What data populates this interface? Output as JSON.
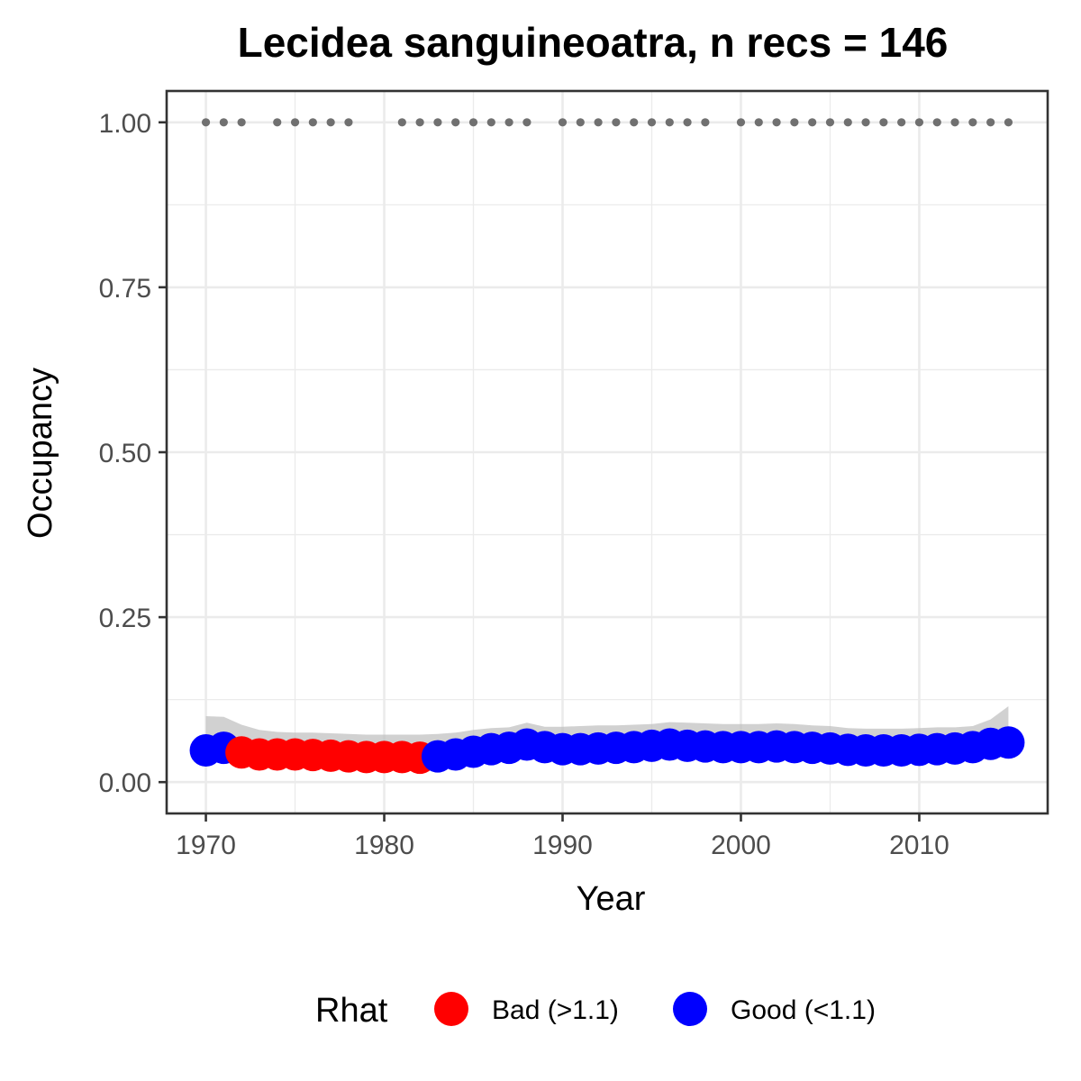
{
  "chart_data": {
    "type": "scatter",
    "title": "Lecidea sanguineoatra, n recs = 146",
    "xlabel": "Year",
    "ylabel": "Occupancy",
    "xlim": [
      1967.8,
      2017.2
    ],
    "ylim": [
      -0.0475,
      1.0475
    ],
    "x_ticks": [
      1970,
      1980,
      1990,
      2000,
      2010
    ],
    "x_tick_labels": [
      "1970",
      "1980",
      "1990",
      "2000",
      "2010"
    ],
    "y_ticks": [
      0,
      0.25,
      0.5,
      0.75,
      1
    ],
    "y_tick_labels": [
      "0.00",
      "0.25",
      "0.50",
      "0.75",
      "1.00"
    ],
    "grid": true,
    "legend": {
      "title": "Rhat",
      "position": "bottom",
      "entries": [
        {
          "label": "Bad (>1.1)",
          "color": "#ff0000"
        },
        {
          "label": "Good (<1.1)",
          "color": "#0000ff"
        }
      ]
    },
    "series": [
      {
        "kind": "occupancy",
        "x": [
          1970,
          1971,
          1972,
          1973,
          1974,
          1975,
          1976,
          1977,
          1978,
          1979,
          1980,
          1981,
          1982,
          1983,
          1984,
          1985,
          1986,
          1987,
          1988,
          1989,
          1990,
          1991,
          1992,
          1993,
          1994,
          1995,
          1996,
          1997,
          1998,
          1999,
          2000,
          2001,
          2002,
          2003,
          2004,
          2005,
          2006,
          2007,
          2008,
          2009,
          2010,
          2011,
          2012,
          2013,
          2014,
          2015
        ],
        "y": [
          0.048,
          0.052,
          0.045,
          0.042,
          0.042,
          0.042,
          0.041,
          0.04,
          0.039,
          0.038,
          0.038,
          0.038,
          0.037,
          0.039,
          0.042,
          0.046,
          0.05,
          0.052,
          0.057,
          0.053,
          0.05,
          0.05,
          0.051,
          0.052,
          0.053,
          0.055,
          0.057,
          0.055,
          0.054,
          0.053,
          0.053,
          0.053,
          0.054,
          0.053,
          0.052,
          0.051,
          0.049,
          0.048,
          0.048,
          0.048,
          0.049,
          0.05,
          0.051,
          0.053,
          0.058,
          0.06
        ],
        "rhat": [
          "Good",
          "Good",
          "Bad",
          "Bad",
          "Bad",
          "Bad",
          "Bad",
          "Bad",
          "Bad",
          "Bad",
          "Bad",
          "Bad",
          "Bad",
          "Good",
          "Good",
          "Good",
          "Good",
          "Good",
          "Good",
          "Good",
          "Good",
          "Good",
          "Good",
          "Good",
          "Good",
          "Good",
          "Good",
          "Good",
          "Good",
          "Good",
          "Good",
          "Good",
          "Good",
          "Good",
          "Good",
          "Good",
          "Good",
          "Good",
          "Good",
          "Good",
          "Good",
          "Good",
          "Good",
          "Good",
          "Good",
          "Good"
        ]
      },
      {
        "kind": "credible_interval",
        "x": [
          1970,
          1971,
          1972,
          1973,
          1974,
          1975,
          1976,
          1977,
          1978,
          1979,
          1980,
          1981,
          1982,
          1983,
          1984,
          1985,
          1986,
          1987,
          1988,
          1989,
          1990,
          1991,
          1992,
          1993,
          1994,
          1995,
          1996,
          1997,
          1998,
          1999,
          2000,
          2001,
          2002,
          2003,
          2004,
          2005,
          2006,
          2007,
          2008,
          2009,
          2010,
          2011,
          2012,
          2013,
          2014,
          2015
        ],
        "lower": [
          0.03,
          0.032,
          0.03,
          0.028,
          0.027,
          0.027,
          0.026,
          0.025,
          0.025,
          0.024,
          0.024,
          0.024,
          0.024,
          0.025,
          0.027,
          0.029,
          0.031,
          0.033,
          0.035,
          0.034,
          0.032,
          0.032,
          0.032,
          0.033,
          0.034,
          0.035,
          0.036,
          0.035,
          0.034,
          0.034,
          0.034,
          0.034,
          0.034,
          0.034,
          0.033,
          0.032,
          0.031,
          0.03,
          0.03,
          0.03,
          0.031,
          0.031,
          0.032,
          0.033,
          0.036,
          0.038
        ],
        "upper": [
          0.1,
          0.099,
          0.087,
          0.079,
          0.076,
          0.075,
          0.075,
          0.074,
          0.073,
          0.072,
          0.072,
          0.072,
          0.072,
          0.073,
          0.075,
          0.079,
          0.082,
          0.083,
          0.09,
          0.084,
          0.084,
          0.085,
          0.086,
          0.086,
          0.087,
          0.088,
          0.091,
          0.09,
          0.089,
          0.088,
          0.088,
          0.088,
          0.089,
          0.088,
          0.086,
          0.085,
          0.082,
          0.081,
          0.081,
          0.081,
          0.082,
          0.083,
          0.083,
          0.085,
          0.095,
          0.115
        ],
        "color": "#bebebe"
      },
      {
        "kind": "records",
        "y_value": 1,
        "x": [
          1970,
          1971,
          1972,
          1974,
          1975,
          1976,
          1977,
          1978,
          1981,
          1982,
          1983,
          1984,
          1985,
          1986,
          1987,
          1988,
          1990,
          1991,
          1992,
          1993,
          1994,
          1995,
          1996,
          1997,
          1998,
          2000,
          2001,
          2002,
          2003,
          2004,
          2005,
          2006,
          2007,
          2008,
          2009,
          2010,
          2011,
          2012,
          2013,
          2014,
          2015
        ],
        "color": "#707070"
      }
    ]
  }
}
